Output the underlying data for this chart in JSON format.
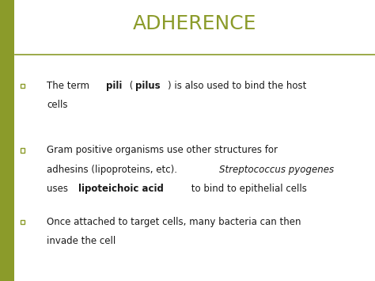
{
  "title": "ADHERENCE",
  "title_color": "#8B9B2A",
  "title_fontsize": 18,
  "background_color": "#FFFFFF",
  "left_bar_color": "#8B9B2A",
  "line_color": "#8B9B2A",
  "bullet_color": "#8B9B2A",
  "text_color": "#1a1a1a",
  "figsize": [
    4.74,
    3.55
  ],
  "dpi": 100,
  "bullet_items": [
    [
      {
        "text": "The term ",
        "bold": false,
        "italic": false
      },
      {
        "text": "pili",
        "bold": true,
        "italic": false
      },
      {
        "text": " (",
        "bold": false,
        "italic": false
      },
      {
        "text": "pilus",
        "bold": true,
        "italic": false
      },
      {
        "text": ") is also used to bind the host",
        "bold": false,
        "italic": false
      },
      {
        "text": "\n",
        "bold": false,
        "italic": false
      },
      {
        "text": "cells",
        "bold": false,
        "italic": false
      }
    ],
    [
      {
        "text": "Gram positive organisms use other structures for",
        "bold": false,
        "italic": false
      },
      {
        "text": "\n",
        "bold": false,
        "italic": false
      },
      {
        "text": "adhesins (lipoproteins, etc). ",
        "bold": false,
        "italic": false
      },
      {
        "text": "Streptococcus pyogenes",
        "bold": false,
        "italic": true
      },
      {
        "text": "\n",
        "bold": false,
        "italic": false
      },
      {
        "text": "uses ",
        "bold": false,
        "italic": false
      },
      {
        "text": "lipoteichoic acid",
        "bold": true,
        "italic": false
      },
      {
        "text": " to bind to epithelial cells",
        "bold": false,
        "italic": false
      }
    ],
    [
      {
        "text": "Once attached to target cells, many bacteria can then",
        "bold": false,
        "italic": false
      },
      {
        "text": "\n",
        "bold": false,
        "italic": false
      },
      {
        "text": "invade the cell",
        "bold": false,
        "italic": false
      }
    ]
  ]
}
